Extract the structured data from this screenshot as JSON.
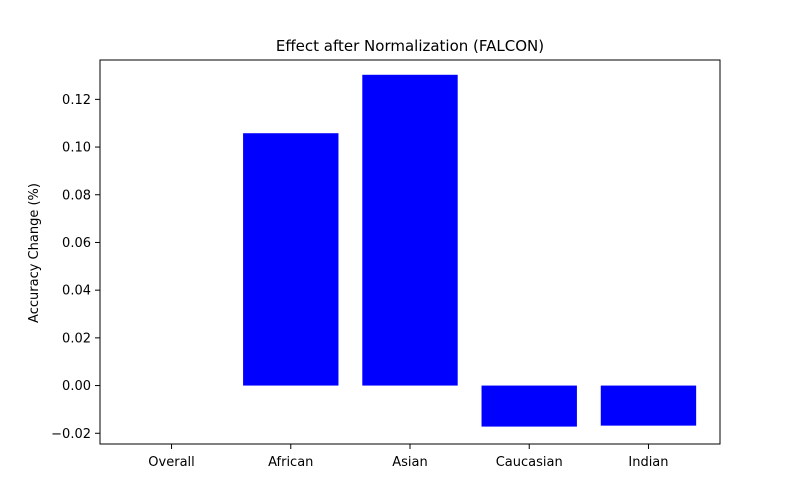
{
  "chart_data": {
    "type": "bar",
    "title": "Effect after Normalization (FALCON)",
    "xlabel": "",
    "ylabel": "Accuracy Change (%)",
    "categories": [
      "Overall",
      "African",
      "Asian",
      "Caucasian",
      "Indian"
    ],
    "values": [
      0.0,
      0.1058,
      0.1303,
      -0.0172,
      -0.0168
    ],
    "ylim": [
      -0.0245,
      0.1365
    ],
    "yticks": [
      -0.02,
      0.0,
      0.02,
      0.04,
      0.06,
      0.08,
      0.1,
      0.12
    ],
    "ytick_labels": [
      "−0.02",
      "0.00",
      "0.02",
      "0.04",
      "0.06",
      "0.08",
      "0.10",
      "0.12"
    ],
    "bar_color": "#0000ff",
    "grid": false,
    "legend": "none"
  }
}
